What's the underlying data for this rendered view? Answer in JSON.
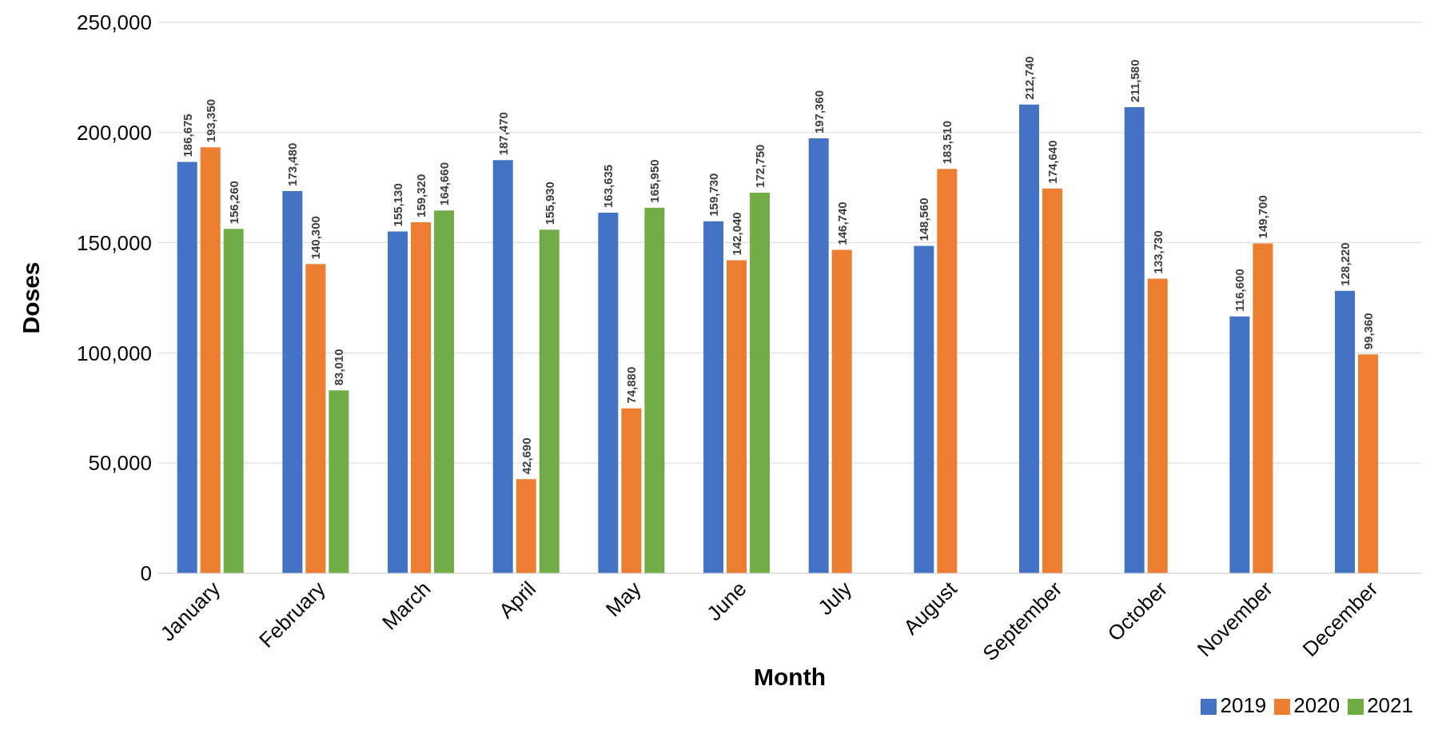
{
  "chart_data": {
    "type": "bar",
    "xlabel": "Month",
    "ylabel": "Doses",
    "categories": [
      "January",
      "February",
      "March",
      "April",
      "May",
      "June",
      "July",
      "August",
      "September",
      "October",
      "November",
      "December"
    ],
    "series": [
      {
        "name": "2019",
        "color": "#4472c4",
        "values": [
          186675,
          173480,
          155130,
          187470,
          163635,
          159730,
          197360,
          148560,
          212740,
          211580,
          116600,
          128220
        ],
        "value_labels": [
          "186,675",
          "173,480",
          "155,130",
          "187,470",
          "163,635",
          "159,730",
          "197,360",
          "148,560",
          "212,740",
          "211,580",
          "116,600",
          "128,220"
        ]
      },
      {
        "name": "2020",
        "color": "#ed7d31",
        "values": [
          193350,
          140300,
          159320,
          42690,
          74880,
          142040,
          146740,
          183510,
          174640,
          133730,
          149700,
          99360
        ],
        "value_labels": [
          "193,350",
          "140,300",
          "159,320",
          "42,690",
          "74,880",
          "142,040",
          "146,740",
          "183,510",
          "174,640",
          "133,730",
          "149,700",
          "99,360"
        ]
      },
      {
        "name": "2021",
        "color": "#70ad47",
        "values": [
          156260,
          83010,
          164660,
          155930,
          165950,
          172750,
          null,
          null,
          null,
          null,
          null,
          null
        ],
        "value_labels": [
          "156,260",
          "83,010",
          "164,660",
          "155,930",
          "165,950",
          "172,750",
          null,
          null,
          null,
          null,
          null,
          null
        ]
      }
    ],
    "ylim": [
      0,
      250000
    ],
    "yticks": [
      0,
      {
        "value": 50000,
        "label": "50,000"
      },
      {
        "value": 100000,
        "label": "100,000"
      },
      {
        "value": 150000,
        "label": "150,000"
      },
      {
        "value": 200000,
        "label": "200,000"
      },
      {
        "value": 250000,
        "label": "250,000"
      }
    ],
    "grid": "y",
    "legend": "bottom right"
  }
}
